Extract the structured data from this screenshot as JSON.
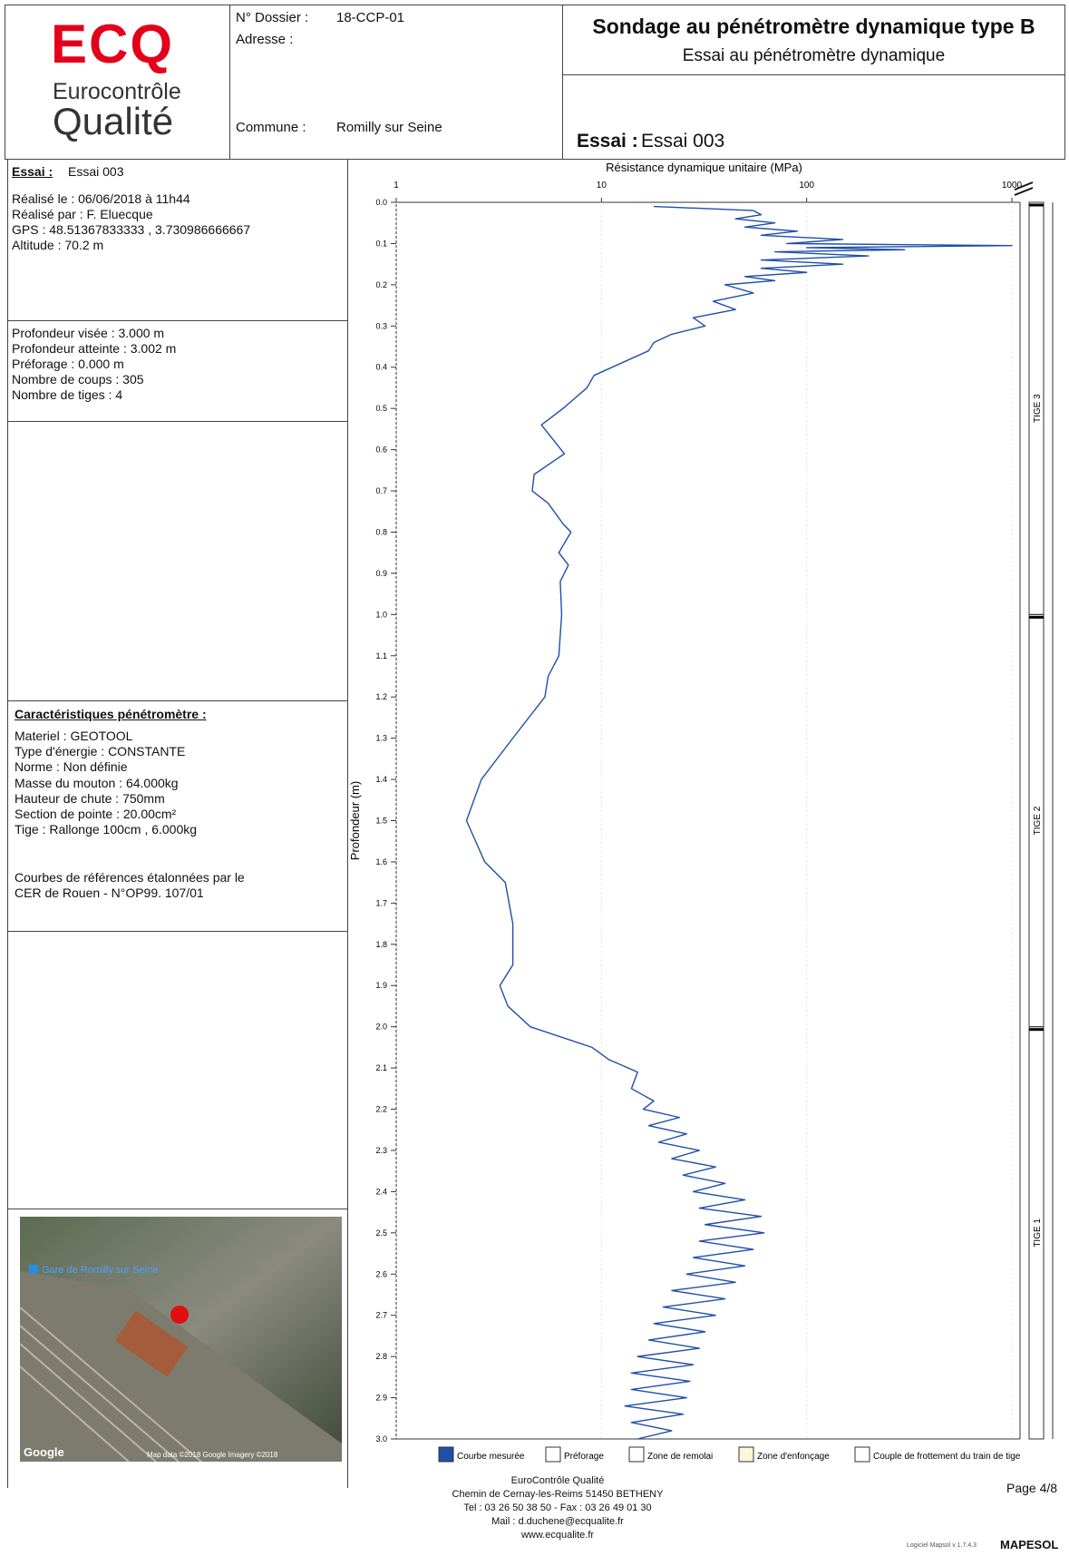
{
  "header": {
    "logo": {
      "mark": "ECQ",
      "line1": "Eurocontrôle",
      "line2": "Qualité"
    },
    "dossier_label": "N° Dossier :",
    "dossier": "18-CCP-01",
    "adresse_label": "Adresse :",
    "commune_label": "Commune :",
    "commune": "Romilly sur Seine",
    "title": "Sondage au pénétromètre dynamique type B",
    "subtitle": "Essai au pénétromètre dynamique",
    "essai_label": "Essai :",
    "essai": "Essai 003"
  },
  "sidebar": {
    "essai_label": "Essai :",
    "essai": "Essai 003",
    "info": [
      "Réalisé le : 06/06/2018 à 11h44",
      "Réalisé par : F. Eluecque",
      "GPS : 48.51367833333 , 3.730986666667",
      "Altitude : 70.2 m"
    ],
    "depth_info": [
      "Profondeur visée : 3.000 m",
      "Profondeur atteinte : 3.002 m",
      "Préforage : 0.000 m",
      "Nombre de coups : 305",
      "Nombre de tiges : 4"
    ],
    "specs_title": "Caractéristiques pénétromètre :",
    "specs": [
      "Materiel : GEOTOOL",
      "Type d'énergie : CONSTANTE",
      "Norme : Non définie",
      "Masse du mouton : 64.000kg",
      "Hauteur de chute : 750mm",
      "Section de pointe : 20.00cm²",
      "Tige : Rallonge 100cm , 6.000kg"
    ],
    "reference": [
      "Courbes de références étalonnées par le",
      "CER de Rouen - N°OP99. 107/01"
    ],
    "map": {
      "place": "Gare de Romilly sur Seine",
      "provider": "Google",
      "attribution": "Map data ©2018 Google  Imagery ©2018"
    }
  },
  "chart_data": {
    "type": "line",
    "x_label": "Résistance dynamique unitaire (MPa)",
    "y_label": "Profondeur (m)",
    "x_log": true,
    "grid": true,
    "xlim": [
      1,
      1000
    ],
    "xticks": [
      1,
      10,
      100,
      1000
    ],
    "ylim": [
      0,
      3
    ],
    "yticks": [
      {
        "value": 0,
        "label": "0.0"
      },
      {
        "value": 0.1,
        "label": "0.1"
      },
      {
        "value": 0.2,
        "label": "0.2"
      },
      {
        "value": 0.3,
        "label": "0.3"
      },
      {
        "value": 0.4,
        "label": "0.4"
      },
      {
        "value": 0.5,
        "label": "0.5"
      },
      {
        "value": 0.6,
        "label": "0.6"
      },
      {
        "value": 0.7,
        "label": "0.7"
      },
      {
        "value": 0.8,
        "label": "0.8"
      },
      {
        "value": 0.9,
        "label": "0.9"
      },
      {
        "value": 1,
        "label": "1.0"
      },
      {
        "value": 1.1,
        "label": "1.1"
      },
      {
        "value": 1.2,
        "label": "1.2"
      },
      {
        "value": 1.3,
        "label": "1.3"
      },
      {
        "value": 1.4,
        "label": "1.4"
      },
      {
        "value": 1.5,
        "label": "1.5"
      },
      {
        "value": 1.6,
        "label": "1.6"
      },
      {
        "value": 1.7,
        "label": "1.7"
      },
      {
        "value": 1.8,
        "label": "1.8"
      },
      {
        "value": 1.9,
        "label": "1.9"
      },
      {
        "value": 2,
        "label": "2.0"
      },
      {
        "value": 2.1,
        "label": "2.1"
      },
      {
        "value": 2.2,
        "label": "2.2"
      },
      {
        "value": 2.3,
        "label": "2.3"
      },
      {
        "value": 2.4,
        "label": "2.4"
      },
      {
        "value": 2.5,
        "label": "2.5"
      },
      {
        "value": 2.6,
        "label": "2.6"
      },
      {
        "value": 2.7,
        "label": "2.7"
      },
      {
        "value": 2.8,
        "label": "2.8"
      },
      {
        "value": 2.9,
        "label": "2.9"
      },
      {
        "value": 3,
        "label": "3.0"
      }
    ],
    "depth": [
      0.01,
      0.02,
      0.03,
      0.04,
      0.05,
      0.06,
      0.07,
      0.08,
      0.09,
      0.1,
      0.105,
      0.11,
      0.115,
      0.12,
      0.13,
      0.14,
      0.15,
      0.16,
      0.17,
      0.18,
      0.19,
      0.2,
      0.22,
      0.24,
      0.26,
      0.28,
      0.3,
      0.32,
      0.34,
      0.36,
      0.39,
      0.42,
      0.45,
      0.5,
      0.54,
      0.61,
      0.66,
      0.7,
      0.73,
      0.78,
      0.8,
      0.85,
      0.88,
      0.92,
      1.0,
      1.1,
      1.15,
      1.2,
      1.3,
      1.4,
      1.5,
      1.6,
      1.65,
      1.75,
      1.85,
      1.9,
      1.95,
      2.0,
      2.05,
      2.08,
      2.11,
      2.15,
      2.18,
      2.2,
      2.22,
      2.24,
      2.26,
      2.28,
      2.3,
      2.32,
      2.34,
      2.36,
      2.38,
      2.4,
      2.42,
      2.44,
      2.46,
      2.48,
      2.5,
      2.52,
      2.54,
      2.56,
      2.58,
      2.6,
      2.62,
      2.64,
      2.66,
      2.68,
      2.7,
      2.72,
      2.74,
      2.76,
      2.78,
      2.8,
      2.82,
      2.84,
      2.86,
      2.88,
      2.9,
      2.92,
      2.94,
      2.96,
      2.98,
      3.0
    ],
    "series": [
      {
        "name": "Courbe mesurée",
        "color": "#1f4fa8",
        "values": [
          18,
          55,
          60,
          45,
          70,
          50,
          90,
          60,
          150,
          80,
          1000,
          100,
          300,
          70,
          200,
          60,
          150,
          60,
          100,
          50,
          70,
          40,
          55,
          35,
          45,
          28,
          32,
          22,
          18,
          17,
          12.5,
          9.2,
          8.5,
          6.5,
          5.1,
          6.6,
          4.7,
          4.6,
          5.5,
          6.5,
          7.1,
          6.2,
          6.9,
          6.3,
          6.4,
          6.2,
          5.5,
          5.3,
          3.7,
          2.6,
          2.2,
          2.7,
          3.4,
          3.7,
          3.7,
          3.2,
          3.5,
          4.5,
          9,
          10.9,
          15,
          14,
          18,
          16,
          24,
          17,
          26,
          19,
          30,
          22,
          36,
          25,
          40,
          28,
          50,
          30,
          60,
          32,
          62,
          30,
          55,
          28,
          50,
          26,
          45,
          22,
          40,
          20,
          36,
          18,
          32,
          17,
          30,
          15,
          28,
          14,
          27,
          14,
          26,
          13,
          25,
          14,
          22,
          15
        ]
      }
    ],
    "legend_extra": [
      {
        "name": "Préforage",
        "color": "#ffffff"
      },
      {
        "name": "Zone de remolai",
        "color": "#ffffff"
      },
      {
        "name": "Zone d'enfonçage",
        "color": "#fdf6d8"
      },
      {
        "name": "Couple de frottement du train de tige",
        "color": "#ffffff"
      }
    ],
    "rods": [
      {
        "label": "TIGE 3",
        "from": 0,
        "to": 1
      },
      {
        "label": "TIGE 2",
        "from": 1,
        "to": 2
      },
      {
        "label": "TIGE 1",
        "from": 2,
        "to": 3
      }
    ]
  },
  "footer": {
    "lines": [
      "EuroContrôle Qualité",
      "Chemin de Cernay-les-Reims 51450 BETHENY",
      "Tel : 03 26 50 38 50 - Fax : 03 26 49 01 30",
      "Mail : d.duchene@ecqualite.fr",
      "www.ecqualite.fr"
    ],
    "page": "Page 4/8",
    "software": "Logiciel Mapsol v 1.7.4.3",
    "brand": "MAPESOL"
  }
}
